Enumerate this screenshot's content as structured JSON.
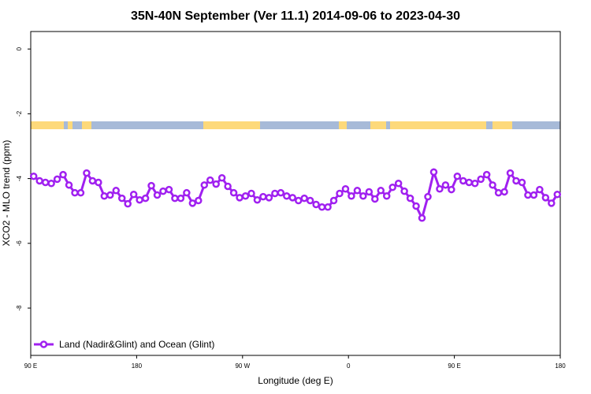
{
  "chart_data": {
    "type": "line",
    "title": "35N-40N September (Ver 11.1)   2014-09-06 to 2023-04-30",
    "x_label": "Longitude (deg E)",
    "y_label": "XCO2 - MLO trend (ppm)",
    "xlim": [
      90,
      540
    ],
    "ylim": [
      -9.46,
      0.54
    ],
    "xticks": [
      {
        "value": 90,
        "label": "90 E"
      },
      180,
      {
        "value": 270,
        "label": "90 W"
      },
      {
        "value": 360,
        "label": "0"
      },
      {
        "value": 450,
        "label": "90 E"
      },
      {
        "value": 540,
        "label": "180"
      }
    ],
    "yticks": [
      0,
      -2,
      -4,
      -6,
      -8
    ],
    "legend": "bottom-left",
    "x": [
      92.5,
      97.5,
      102.5,
      107.5,
      112.5,
      117.5,
      122.5,
      127.5,
      132.5,
      137.5,
      142.5,
      147.5,
      152.5,
      157.5,
      162.5,
      167.5,
      172.5,
      177.5,
      182.5,
      187.5,
      192.5,
      197.5,
      202.5,
      207.5,
      212.5,
      217.5,
      222.5,
      227.5,
      232.5,
      237.5,
      242.5,
      247.5,
      252.5,
      257.5,
      262.5,
      267.5,
      272.5,
      277.5,
      282.5,
      287.5,
      292.5,
      297.5,
      302.5,
      307.5,
      312.5,
      317.5,
      322.5,
      327.5,
      332.5,
      337.5,
      342.5,
      347.5,
      352.5,
      357.5,
      362.5,
      367.5,
      372.5,
      377.5,
      382.5,
      387.5,
      392.5,
      397.5,
      402.5,
      407.5,
      412.5,
      417.5,
      422.5,
      427.5,
      432.5,
      437.5,
      442.5,
      447.5,
      452.5,
      457.5,
      462.5,
      467.5,
      472.5,
      477.5,
      482.5,
      487.5,
      492.5,
      497.5,
      502.5,
      507.5,
      512.5,
      517.5,
      522.5,
      527.5,
      532.5,
      537.5
    ],
    "series": [
      {
        "name": "Land (Nadir&Glint) and Ocean (Glint)",
        "color": "#a020f0",
        "values": [
          -3.93,
          -4.07,
          -4.12,
          -4.15,
          -4.02,
          -3.88,
          -4.2,
          -4.44,
          -4.44,
          -3.83,
          -4.07,
          -4.12,
          -4.54,
          -4.51,
          -4.37,
          -4.61,
          -4.78,
          -4.49,
          -4.66,
          -4.61,
          -4.22,
          -4.51,
          -4.39,
          -4.34,
          -4.61,
          -4.61,
          -4.44,
          -4.76,
          -4.68,
          -4.2,
          -4.05,
          -4.17,
          -3.98,
          -4.24,
          -4.44,
          -4.59,
          -4.54,
          -4.46,
          -4.66,
          -4.56,
          -4.59,
          -4.46,
          -4.44,
          -4.54,
          -4.59,
          -4.68,
          -4.61,
          -4.68,
          -4.8,
          -4.88,
          -4.88,
          -4.68,
          -4.46,
          -4.32,
          -4.54,
          -4.37,
          -4.54,
          -4.41,
          -4.63,
          -4.37,
          -4.54,
          -4.27,
          -4.15,
          -4.39,
          -4.61,
          -4.85,
          -5.22,
          -4.56,
          -3.8,
          -4.32,
          -4.2,
          -4.34,
          -3.93,
          -4.07,
          -4.12,
          -4.15,
          -4.02,
          -3.88,
          -4.2,
          -4.44,
          -4.41,
          -3.83,
          -4.07,
          -4.12,
          -4.51,
          -4.51,
          -4.34,
          -4.59,
          -4.76,
          -4.49
        ]
      }
    ]
  }
}
